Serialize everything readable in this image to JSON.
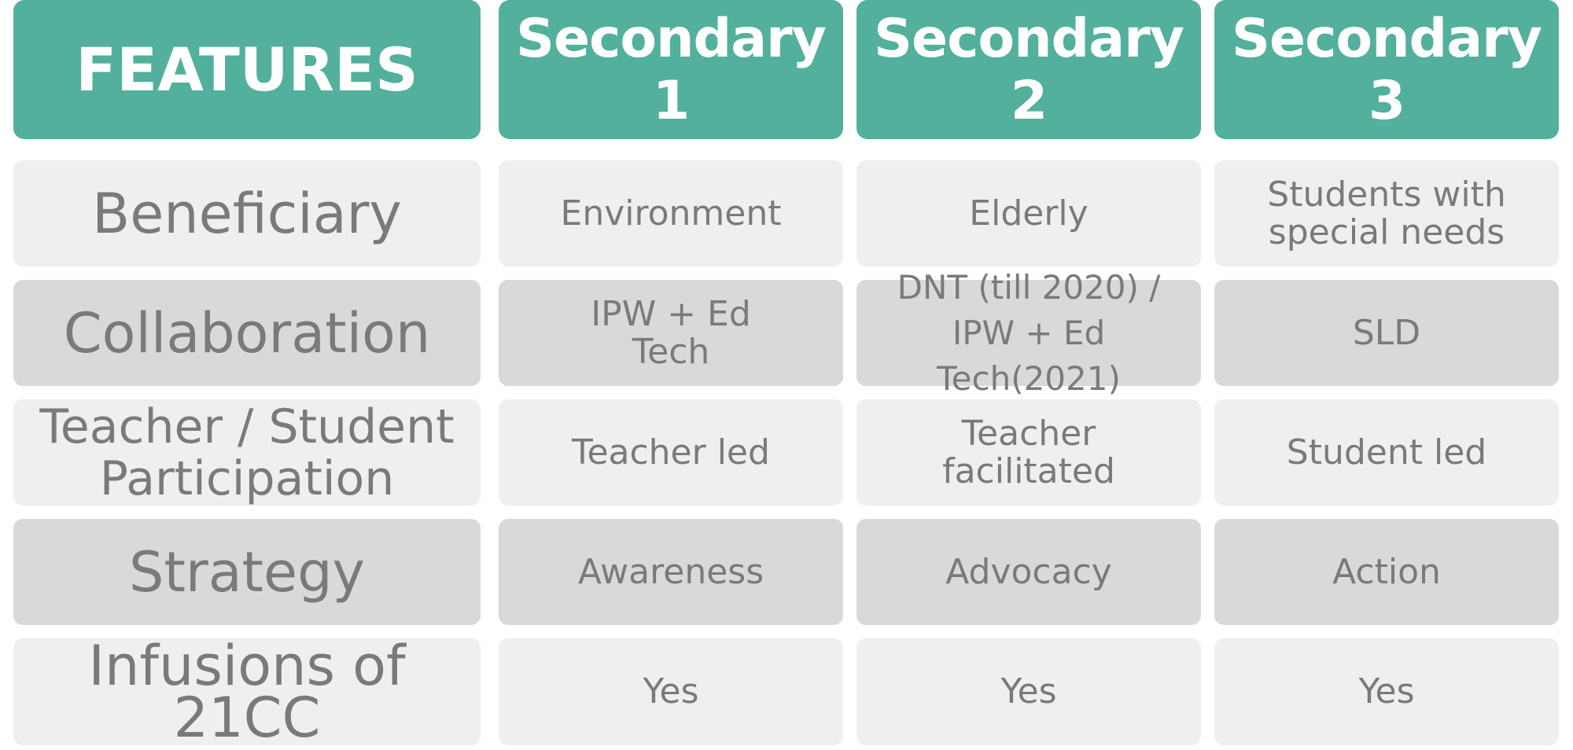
{
  "table": {
    "headers": [
      "FEATURES",
      "Secondary 1",
      "Secondary 2",
      "Secondary 3"
    ],
    "rows": [
      {
        "feature": "Beneficiary",
        "values": [
          "Environment",
          "Elderly",
          "Students with\nspecial needs"
        ]
      },
      {
        "feature": "Collaboration",
        "values": [
          "IPW + Ed\nTech",
          "DNT (till 2020) /\nIPW + Ed Tech(2021)",
          "SLD"
        ]
      },
      {
        "feature": "Teacher / Student\nParticipation",
        "values": [
          "Teacher led",
          "Teacher\nfacilitated",
          "Student led"
        ]
      },
      {
        "feature": "Strategy",
        "values": [
          "Awareness",
          "Advocacy",
          "Action"
        ]
      },
      {
        "feature": "Infusions of 21CC",
        "values": [
          "Yes",
          "Yes",
          "Yes"
        ]
      }
    ]
  },
  "colors": {
    "header_bg": "#52b09c",
    "row_light": "#efefef",
    "row_dark": "#d9d9d9",
    "text": "#7a7a7a"
  }
}
